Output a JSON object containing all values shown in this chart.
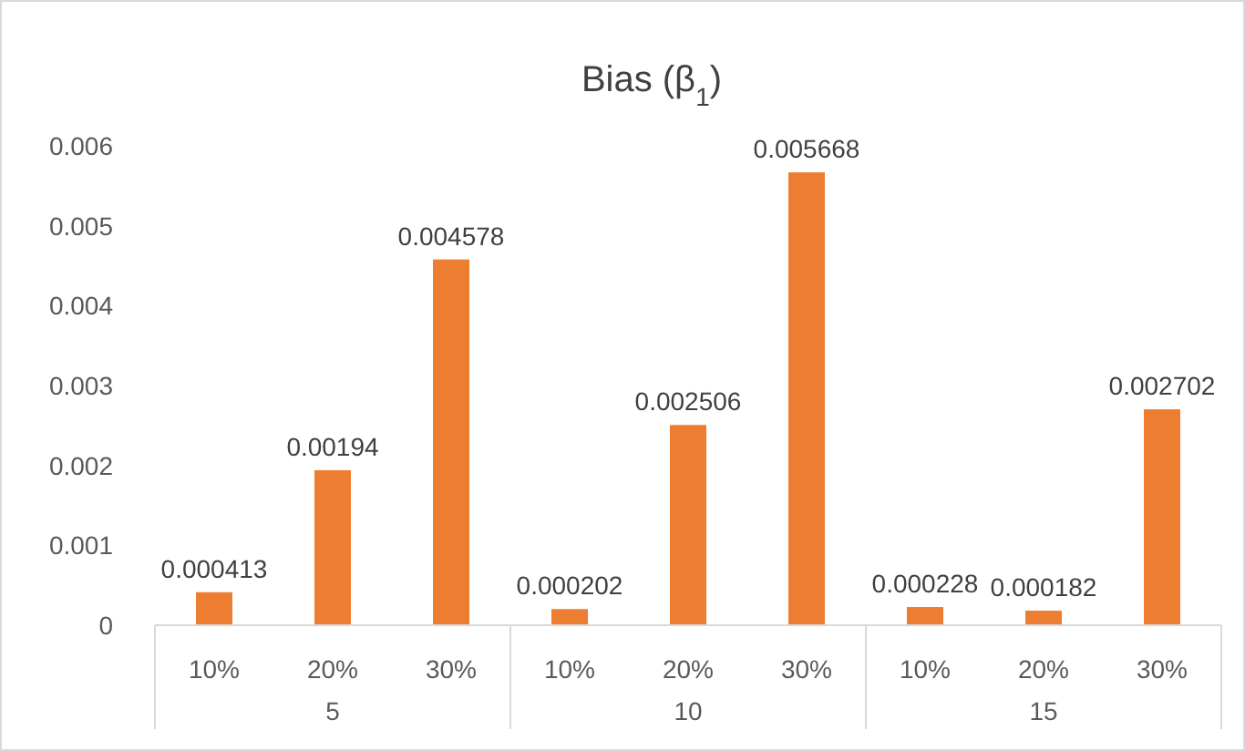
{
  "chart_data": {
    "type": "bar",
    "title": "Bias (β$_{1}$)",
    "categories": [
      "10%",
      "20%",
      "30%",
      "10%",
      "20%",
      "30%",
      "10%",
      "20%",
      "30%"
    ],
    "annotations": [
      "5",
      "10",
      "15"
    ],
    "values": [
      0.000413,
      0.00194,
      0.004578,
      0.000202,
      0.002506,
      0.005668,
      0.000228,
      0.000182,
      0.002702
    ],
    "color": "#ed7d31",
    "ylim": [
      0,
      0.006
    ],
    "yticks": [
      0,
      0.001,
      0.002,
      0.003,
      0.004,
      0.005,
      0.006
    ],
    "data_labels": true,
    "grid": false
  }
}
